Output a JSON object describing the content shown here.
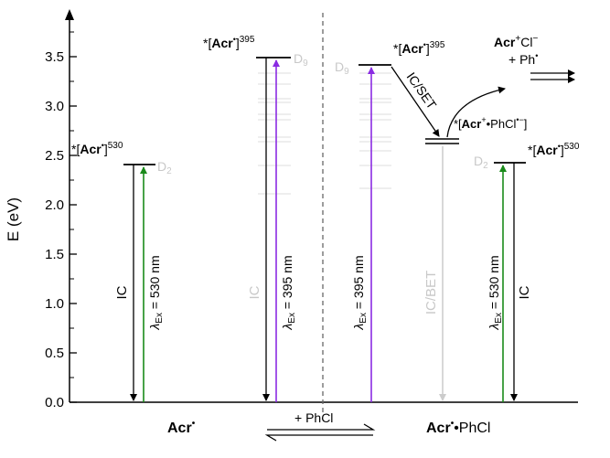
{
  "colors": {
    "axis": "#000000",
    "purple": "#8a2be2",
    "green": "#1a8a1a",
    "grey_arrow": "#cccccc",
    "minor_level": "#dcdcdc",
    "label_grey": "#bbbbbb",
    "divider": "#666666"
  },
  "axis": {
    "ylabel": "E (eV)",
    "ylim": [
      0,
      3.8
    ],
    "ticks": [
      "0.0",
      "0.5",
      "1.0",
      "1.5",
      "2.0",
      "2.5",
      "3.0",
      "3.5"
    ]
  },
  "states": {
    "left_530": {
      "prefix": "*[",
      "name": "Acr",
      "rad": "•",
      "close": "]",
      "sup": "530",
      "dlabel": "D",
      "dsub": "2"
    },
    "left_395": {
      "prefix": "*[",
      "name": "Acr",
      "rad": "•",
      "close": "]",
      "sup": "395",
      "dlabel": "D",
      "dsub": "9"
    },
    "right_395": {
      "prefix": "*[",
      "name": "Acr",
      "rad": "•",
      "close": "]",
      "sup": "395",
      "dlabel": "D",
      "dsub": "9"
    },
    "right_530": {
      "prefix": "*[",
      "name": "Acr",
      "rad": "•",
      "close": "]",
      "sup": "530",
      "dlabel": "D",
      "dsub": "2"
    },
    "complex": {
      "prefix": "*[",
      "name": "Acr",
      "sup1": "+",
      "mid": "•PhCl",
      "sup2": "•−",
      "close": "]"
    }
  },
  "transitions": {
    "ex530_left": {
      "lambda": "λ",
      "sub": "Ex",
      "text": " = 530 nm"
    },
    "ex395_left": {
      "lambda": "λ",
      "sub": "Ex",
      "text": " = 395 nm"
    },
    "ex395_right": {
      "lambda": "λ",
      "sub": "Ex",
      "text": " = 395 nm"
    },
    "ex530_right": {
      "lambda": "λ",
      "sub": "Ex",
      "text": " = 530 nm"
    },
    "ic_left_530": "IC",
    "ic_left_395": "IC",
    "ic_set": "IC/SET",
    "ic_bet": "IC/BET",
    "ic_right_530": "IC"
  },
  "products": {
    "acr": "Acr",
    "acr_sup": "+",
    "cl": "Cl",
    "cl_sup": "−",
    "ph": "+ Ph",
    "ph_sup": "•"
  },
  "bottom": {
    "left_name": "Acr",
    "left_sup": "•",
    "equilibrium": "+ PhCl",
    "right_name": "Acr",
    "right_sup": "•",
    "right_suffix": "•PhCl"
  }
}
